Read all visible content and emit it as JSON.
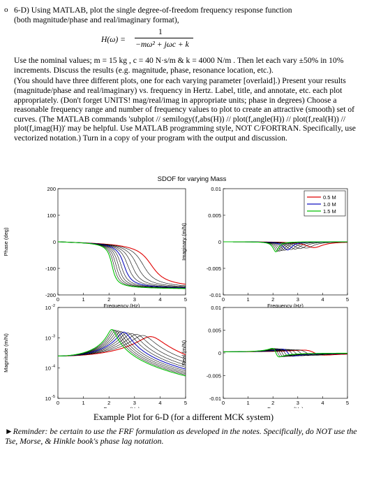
{
  "problem": {
    "bullet": "o",
    "heading_line1": "6-D) Using MATLAB, plot the single degree-of-freedom frequency response function",
    "heading_line2": "(both magnitude/phase and real/imaginary format),",
    "equation_lhs": "H(ω) =",
    "equation_numerator": "1",
    "equation_denominator": "−mω² + jωc + k",
    "paragraph1": "Use the nominal values; m = 15 kg , c = 40 N·s/m & k = 4000 N/m . Then let each vary ±50% in 10% increments. Discuss the results (e.g. magnitude, phase, resonance location, etc.).",
    "paragraph2": "(You should have three different plots, one for each varying parameter [overlaid].) Present your results (magnitude/phase and real/imaginary) vs. frequency in Hertz. Label, title, and annotate, etc. each plot appropriately. (Don't forget UNITS! mag/real/imag in appropriate units; phase in degrees) Choose a reasonable frequency range and number of frequency values to plot to create an attractive (smooth) set of curves. (The MATLAB commands 'subplot // semilogy(f,abs(H)) // plot(f,angle(H)) // plot(f,real(H)) // plot(f,imag(H))' may be helpful. Use MATLAB programming style, NOT C/FORTRAN. Specifically, use vectorized notation.) Turn in a copy of your program with the output and discussion."
  },
  "figure": {
    "suptitle": "SDOF for varying Mass",
    "legend": [
      {
        "label": "0.5 M",
        "color": "#e00000"
      },
      {
        "label": "1.0 M",
        "color": "#1010c0"
      },
      {
        "label": "1.5 M",
        "color": "#00c000"
      }
    ],
    "xlabel": "Frequency (Hz)",
    "xticks": [
      "0",
      "1",
      "2",
      "3",
      "4",
      "5"
    ],
    "phase_ylabel": "Phase (deg)",
    "phase_yticks": [
      "200",
      "100",
      "0",
      "-100",
      "-200"
    ],
    "imag_ylabel": "Imaginary (m/N)",
    "imag_yticks": [
      "0.01",
      "0.005",
      "0",
      "-0.005",
      "-0.01"
    ],
    "mag_ylabel": "Magnitude (m/N)",
    "mag_ytick_base": "10",
    "mag_ytick_exp": [
      "-2",
      "-3",
      "-4",
      "-5"
    ],
    "real_ylabel": "Real (m/N)",
    "real_yticks": [
      "0.01",
      "0.005",
      "0",
      "-0.005",
      "-0.01"
    ]
  },
  "chart_data": [
    {
      "type": "line",
      "panel": "phase",
      "title": "",
      "xlabel": "Frequency (Hz)",
      "ylabel": "Phase (deg)",
      "xlim": [
        0,
        5
      ],
      "ylim": [
        -200,
        200
      ],
      "series_mass_factors": [
        0.5,
        0.6,
        0.7,
        0.8,
        0.9,
        1.0,
        1.1,
        1.2,
        1.3,
        1.4,
        1.5
      ],
      "m": 15,
      "c": 40,
      "k": 4000
    },
    {
      "type": "line",
      "panel": "imaginary",
      "title": "",
      "xlabel": "Frequency (Hz)",
      "ylabel": "Imaginary (m/N)",
      "xlim": [
        0,
        5
      ],
      "ylim": [
        -0.01,
        0.01
      ],
      "series_mass_factors": [
        0.5,
        0.6,
        0.7,
        0.8,
        0.9,
        1.0,
        1.1,
        1.2,
        1.3,
        1.4,
        1.5
      ],
      "m": 15,
      "c": 40,
      "k": 4000
    },
    {
      "type": "line",
      "panel": "magnitude",
      "title": "",
      "xlabel": "Frequency (Hz)",
      "ylabel": "Magnitude (m/N)",
      "xlim": [
        0,
        5
      ],
      "ylim": [
        1e-05,
        0.01
      ],
      "log_y": true,
      "series_mass_factors": [
        0.5,
        0.6,
        0.7,
        0.8,
        0.9,
        1.0,
        1.1,
        1.2,
        1.3,
        1.4,
        1.5
      ],
      "m": 15,
      "c": 40,
      "k": 4000
    },
    {
      "type": "line",
      "panel": "real",
      "title": "",
      "xlabel": "Frequency (Hz)",
      "ylabel": "Real (m/N)",
      "xlim": [
        0,
        5
      ],
      "ylim": [
        -0.01,
        0.01
      ],
      "series_mass_factors": [
        0.5,
        0.6,
        0.7,
        0.8,
        0.9,
        1.0,
        1.1,
        1.2,
        1.3,
        1.4,
        1.5
      ],
      "m": 15,
      "c": 40,
      "k": 4000
    }
  ],
  "caption": "Example Plot for 6-D (for a different MCK system)",
  "reminder": "►Reminder: be certain to use the FRF formulation as developed in the notes. Specifically, do NOT use the Tse, Morse, & Hinkle book's phase lag notation."
}
